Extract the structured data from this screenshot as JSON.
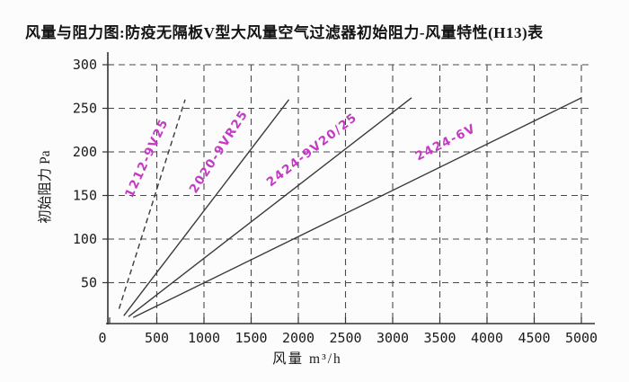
{
  "title": "风量与阻力图:防疫无隔板V型大风量空气过滤器初始阻力-风量特性(H13)表",
  "chart_data": {
    "type": "line",
    "title": "风量与阻力图:防疫无隔板V型大风量空气过滤器初始阻力-风量特性(H13)表",
    "xlabel": "风量  m³/h",
    "ylabel": "初始阻力 Pa",
    "xlim": [
      0,
      5000
    ],
    "ylim": [
      0,
      300
    ],
    "x_ticks": [
      0,
      500,
      1000,
      1500,
      2000,
      2500,
      3000,
      3500,
      4000,
      4500,
      5000
    ],
    "y_ticks": [
      50,
      100,
      150,
      200,
      250,
      300
    ],
    "grid": true,
    "grid_style": "dashed",
    "legend_position": "inline-rotated-labels",
    "axis_color": "#333333",
    "grid_color": "#4a4a4a",
    "line_color": "#3a3a3a",
    "label_color": "#c23bc2",
    "tick_label_color": "#1a1a1a",
    "series": [
      {
        "name": "1212-9V25",
        "style": "dashed",
        "points": [
          [
            100,
            20
          ],
          [
            800,
            260
          ]
        ],
        "label_x": 430,
        "label_y": 191,
        "label_angle": -65
      },
      {
        "name": "2020-9VR25",
        "style": "solid",
        "points": [
          [
            150,
            12
          ],
          [
            1900,
            260
          ]
        ],
        "label_x": 1190,
        "label_y": 198,
        "label_angle": -57
      },
      {
        "name": "2424-9V20/25",
        "style": "solid",
        "points": [
          [
            200,
            11
          ],
          [
            3200,
            262
          ]
        ],
        "label_x": 2170,
        "label_y": 199,
        "label_angle": -38
      },
      {
        "name": "2424-6V",
        "style": "solid",
        "points": [
          [
            250,
            10
          ],
          [
            5000,
            262
          ]
        ],
        "label_x": 3580,
        "label_y": 207,
        "label_angle": -27
      }
    ]
  }
}
